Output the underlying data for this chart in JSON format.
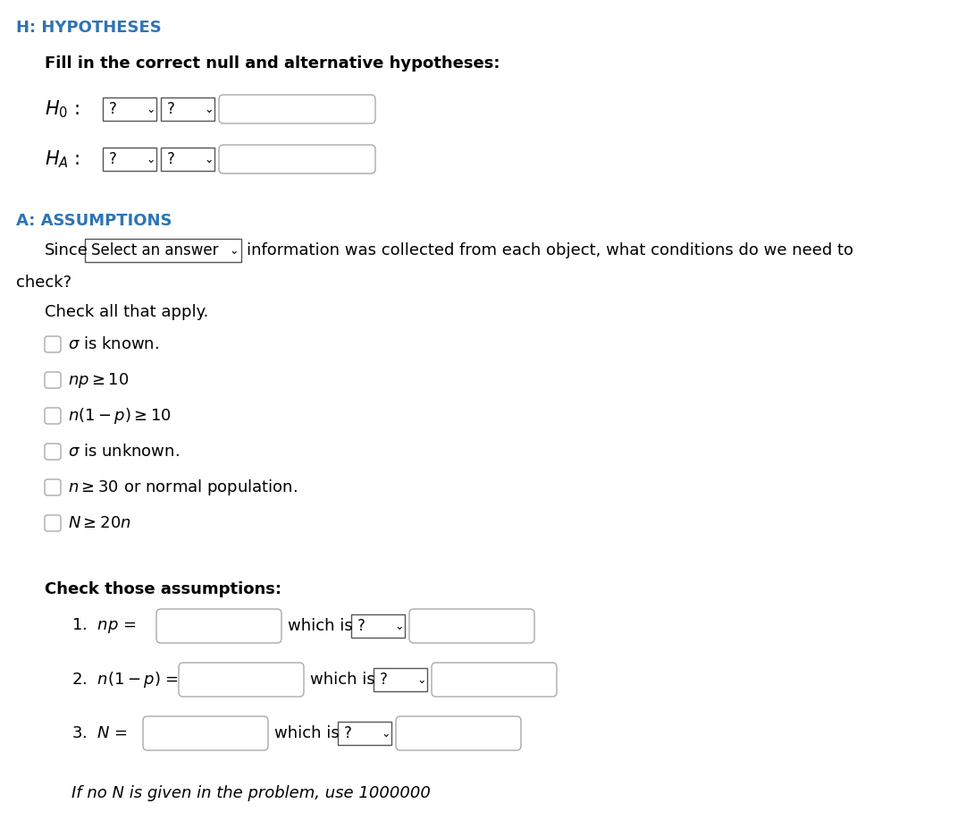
{
  "bg_color": "#ffffff",
  "heading_color": "#2e74b5",
  "text_color": "#000000",
  "italic_color": "#1f497d",
  "heading_h": "H: HYPOTHESES",
  "heading_a": "A: ASSUMPTIONS",
  "fill_in_text": "Fill in the correct null and alternative hypotheses:",
  "since_text_before": "Since",
  "since_dropdown": "Select an answer",
  "since_text_after": "information was collected from each object, what conditions do we need to",
  "check_word": "check?",
  "check_all_text": "Check all that apply.",
  "check_assumptions_title": "Check those assumptions:",
  "which_is": "which is",
  "footer": "If no N is given in the problem, use 1000000",
  "main_fontsize": 13,
  "label_fontsize": 13,
  "heading_fontsize": 13
}
